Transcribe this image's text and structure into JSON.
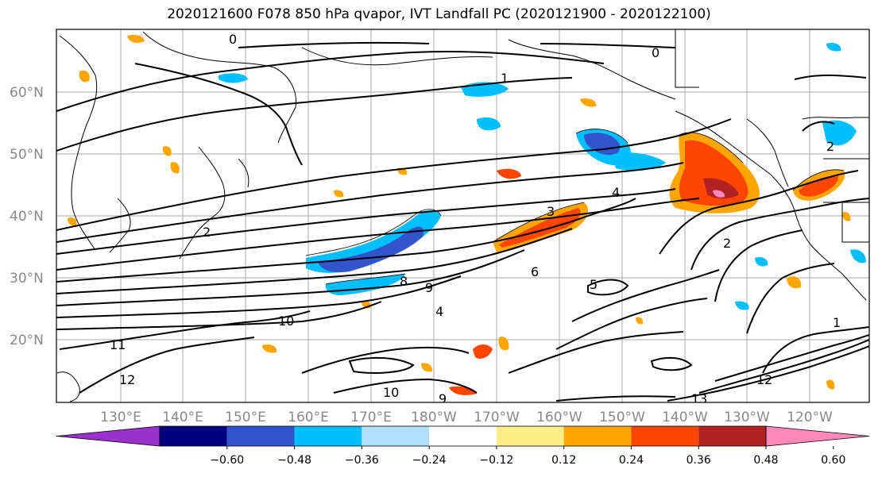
{
  "title": "2020121600 F078 850 hPa qvapor, IVT Landfall PC (2020121900 - 2020122100)",
  "lat_labels": [
    "60°N",
    "50°N",
    "40°N",
    "30°N",
    "20°N"
  ],
  "lon_labels": [
    "130°E",
    "140°E",
    "150°E",
    "160°E",
    "170°E",
    "180°W",
    "170°W",
    "160°W",
    "150°W",
    "140°W",
    "130°W",
    "120°W"
  ],
  "colorbar": {
    "colors": [
      "#9932cc",
      "#000080",
      "#3355cc",
      "#00bfff",
      "#b0e0ff",
      "#ffffff",
      "#ffee88",
      "#ffa500",
      "#ff4500",
      "#b22222",
      "#ff88bb"
    ],
    "ticks": [
      "−0.60",
      "−0.48",
      "−0.36",
      "−0.24",
      "−0.12",
      "0.12",
      "0.24",
      "0.36",
      "0.48",
      "0.60"
    ]
  },
  "contour_labels": [
    "0",
    "0",
    "1",
    "2",
    "2",
    "3",
    "4",
    "4",
    "5",
    "6",
    "9",
    "8",
    "9",
    "10",
    "10",
    "11",
    "12",
    "12",
    "13",
    "1",
    "2"
  ]
}
